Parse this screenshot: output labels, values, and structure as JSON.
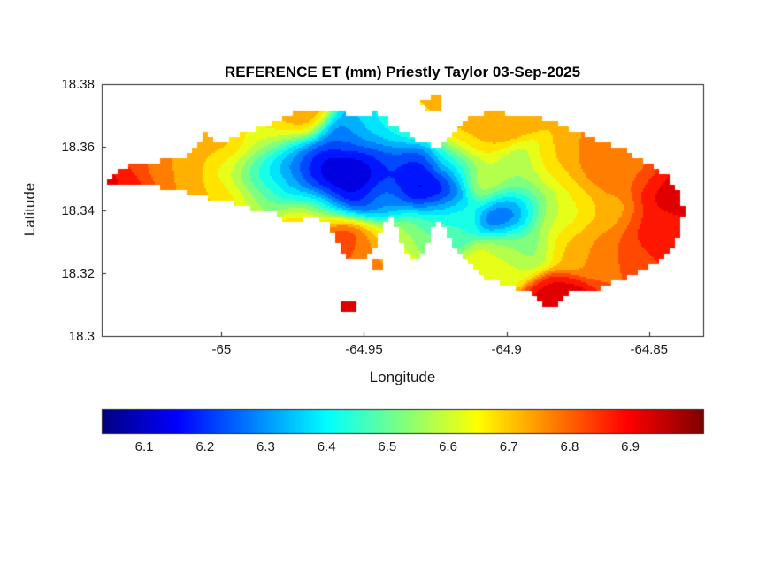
{
  "figure": {
    "background": "#ffffff"
  },
  "colors": {
    "text": "#1a1a1a",
    "axis": "#262626",
    "title": "#000000"
  },
  "chart_data": {
    "type": "heatmap",
    "style": "filled-contour-map",
    "title": "REFERENCE ET (mm) Priestly Taylor 03-Sep-2025",
    "xlabel": "Longitude",
    "ylabel": "Latitude",
    "xlim": [
      -65.042,
      -64.831
    ],
    "ylim": [
      18.3,
      18.38
    ],
    "xticks": [
      -65,
      -64.95,
      -64.9,
      -64.85
    ],
    "xtick_labels": [
      "-65",
      "-64.95",
      "-64.9",
      "-64.85"
    ],
    "yticks": [
      18.3,
      18.32,
      18.34,
      18.36,
      18.38
    ],
    "ytick_labels": [
      "18.3",
      "18.32",
      "18.34",
      "18.36",
      "18.38"
    ],
    "grid": false,
    "colormap": "jet",
    "contour_interval_mm": 0.05,
    "colorbar": {
      "orientation": "horizontal",
      "clim": [
        6.03,
        7.02
      ],
      "ticks": [
        6.1,
        6.2,
        6.3,
        6.4,
        6.5,
        6.6,
        6.7,
        6.8,
        6.9
      ],
      "tick_labels": [
        "6.1",
        "6.2",
        "6.3",
        "6.4",
        "6.5",
        "6.6",
        "6.7",
        "6.8",
        "6.9"
      ]
    },
    "island_outline": [
      [
        -65.0402,
        18.3491
      ],
      [
        -65.0346,
        18.3528
      ],
      [
        -65.0285,
        18.3553
      ],
      [
        -65.0241,
        18.3539
      ],
      [
        -65.0192,
        18.3573
      ],
      [
        -65.0139,
        18.3559
      ],
      [
        -65.0087,
        18.3595
      ],
      [
        -65.0056,
        18.3646
      ],
      [
        -65.0022,
        18.3609
      ],
      [
        -64.9963,
        18.3629
      ],
      [
        -64.9892,
        18.3651
      ],
      [
        -64.9814,
        18.3679
      ],
      [
        -64.9737,
        18.371
      ],
      [
        -64.9644,
        18.3719
      ],
      [
        -64.9552,
        18.3705
      ],
      [
        -64.9499,
        18.3693
      ],
      [
        -64.9468,
        18.3716
      ],
      [
        -64.9437,
        18.3705
      ],
      [
        -64.9406,
        18.3671
      ],
      [
        -64.9363,
        18.3648
      ],
      [
        -64.932,
        18.3623
      ],
      [
        -64.9289,
        18.3612
      ],
      [
        -64.9242,
        18.3595
      ],
      [
        -64.9211,
        18.3618
      ],
      [
        -64.918,
        18.3657
      ],
      [
        -64.9143,
        18.3688
      ],
      [
        -64.9097,
        18.3705
      ],
      [
        -64.9035,
        18.3713
      ],
      [
        -64.8973,
        18.3699
      ],
      [
        -64.8918,
        18.3707
      ],
      [
        -64.8868,
        18.3691
      ],
      [
        -64.8806,
        18.3665
      ],
      [
        -64.8744,
        18.3646
      ],
      [
        -64.8689,
        18.3626
      ],
      [
        -64.8633,
        18.3609
      ],
      [
        -64.8577,
        18.3587
      ],
      [
        -64.8525,
        18.3559
      ],
      [
        -64.8475,
        18.3531
      ],
      [
        -64.8432,
        18.3502
      ],
      [
        -64.8401,
        18.3469
      ],
      [
        -64.8382,
        18.3429
      ],
      [
        -64.8379,
        18.3387
      ],
      [
        -64.8389,
        18.3345
      ],
      [
        -64.8407,
        18.3303
      ],
      [
        -64.8438,
        18.3258
      ],
      [
        -64.8472,
        18.3233
      ],
      [
        -64.8525,
        18.3208
      ],
      [
        -64.858,
        18.3185
      ],
      [
        -64.8633,
        18.3166
      ],
      [
        -64.8686,
        18.3149
      ],
      [
        -64.8735,
        18.3138
      ],
      [
        -64.8772,
        18.314
      ],
      [
        -64.8803,
        18.3121
      ],
      [
        -64.8831,
        18.3093
      ],
      [
        -64.8865,
        18.309
      ],
      [
        -64.889,
        18.3118
      ],
      [
        -64.8921,
        18.3138
      ],
      [
        -64.8967,
        18.3152
      ],
      [
        -64.9017,
        18.3166
      ],
      [
        -64.9063,
        18.318
      ],
      [
        -64.91,
        18.3199
      ],
      [
        -64.9131,
        18.3227
      ],
      [
        -64.9156,
        18.325
      ],
      [
        -64.918,
        18.3278
      ],
      [
        -64.9202,
        18.332
      ],
      [
        -64.9221,
        18.3357
      ],
      [
        -64.9239,
        18.3368
      ],
      [
        -64.9258,
        18.3334
      ],
      [
        -64.9273,
        18.3292
      ],
      [
        -64.9295,
        18.3255
      ],
      [
        -64.9323,
        18.3239
      ],
      [
        -64.9347,
        18.3255
      ],
      [
        -64.9366,
        18.3292
      ],
      [
        -64.9381,
        18.3334
      ],
      [
        -64.9397,
        18.3368
      ],
      [
        -64.9412,
        18.3373
      ],
      [
        -64.9431,
        18.3345
      ],
      [
        -64.9449,
        18.3312
      ],
      [
        -64.9465,
        18.3278
      ],
      [
        -64.9487,
        18.3253
      ],
      [
        -64.9514,
        18.3236
      ],
      [
        -64.9545,
        18.3244
      ],
      [
        -64.9573,
        18.3264
      ],
      [
        -64.9595,
        18.3295
      ],
      [
        -64.9613,
        18.3331
      ],
      [
        -64.9632,
        18.3359
      ],
      [
        -64.9657,
        18.3376
      ],
      [
        -64.9688,
        18.3385
      ],
      [
        -64.9719,
        18.3371
      ],
      [
        -64.9746,
        18.3351
      ],
      [
        -64.9771,
        18.3362
      ],
      [
        -64.9799,
        18.3387
      ],
      [
        -64.9827,
        18.3404
      ],
      [
        -64.9858,
        18.3399
      ],
      [
        -64.9892,
        18.3399
      ],
      [
        -64.9932,
        18.3413
      ],
      [
        -64.9975,
        18.3424
      ],
      [
        -65.0022,
        18.3432
      ],
      [
        -65.0068,
        18.3444
      ],
      [
        -65.0118,
        18.3452
      ],
      [
        -65.0167,
        18.3463
      ],
      [
        -65.0217,
        18.3472
      ],
      [
        -65.0269,
        18.348
      ],
      [
        -65.0319,
        18.3486
      ],
      [
        -65.0365,
        18.3488
      ],
      [
        -65.0396,
        18.3488
      ]
    ],
    "islets": [
      [
        [
          -64.9298,
          18.3752
        ],
        [
          -64.9236,
          18.3761
        ],
        [
          -64.922,
          18.3735
        ],
        [
          -64.9251,
          18.3713
        ],
        [
          -64.9288,
          18.3719
        ]
      ],
      [
        [
          -64.9474,
          18.3247
        ],
        [
          -64.9431,
          18.3253
        ],
        [
          -64.9421,
          18.3225
        ],
        [
          -64.9449,
          18.3202
        ],
        [
          -64.9477,
          18.3219
        ]
      ],
      [
        [
          -64.9579,
          18.3101
        ],
        [
          -64.953,
          18.3107
        ],
        [
          -64.9524,
          18.3079
        ],
        [
          -64.9567,
          18.3067
        ]
      ]
    ],
    "et_samples": [
      [
        -65.038,
        18.35,
        6.92
      ],
      [
        -65.028,
        18.356,
        6.8
      ],
      [
        -65.03,
        18.344,
        6.88
      ],
      [
        -65.018,
        18.35,
        6.75
      ],
      [
        -65.008,
        18.356,
        6.72
      ],
      [
        -65.005,
        18.345,
        6.72
      ],
      [
        -64.997,
        18.352,
        6.6
      ],
      [
        -64.998,
        18.342,
        6.68
      ],
      [
        -64.995,
        18.36,
        6.75
      ],
      [
        -64.982,
        18.366,
        6.72
      ],
      [
        -64.973,
        18.37,
        6.75
      ],
      [
        -64.986,
        18.362,
        6.55
      ],
      [
        -64.987,
        18.353,
        6.38
      ],
      [
        -64.986,
        18.344,
        6.55
      ],
      [
        -64.976,
        18.357,
        6.3
      ],
      [
        -64.968,
        18.353,
        6.15
      ],
      [
        -64.96,
        18.35,
        6.05
      ],
      [
        -64.951,
        18.354,
        6.08
      ],
      [
        -64.942,
        18.356,
        6.25
      ],
      [
        -64.933,
        18.351,
        6.15
      ],
      [
        -64.925,
        18.346,
        6.08
      ],
      [
        -64.955,
        18.345,
        6.12
      ],
      [
        -64.944,
        18.343,
        6.3
      ],
      [
        -64.965,
        18.342,
        6.45
      ],
      [
        -64.977,
        18.348,
        6.35
      ],
      [
        -64.948,
        18.365,
        6.38
      ],
      [
        -64.937,
        18.367,
        6.45
      ],
      [
        -64.957,
        18.362,
        6.25
      ],
      [
        -64.971,
        18.336,
        6.72
      ],
      [
        -64.959,
        18.332,
        6.88
      ],
      [
        -64.95,
        18.328,
        6.78
      ],
      [
        -64.939,
        18.33,
        6.6
      ],
      [
        -64.975,
        18.327,
        6.68
      ],
      [
        -64.929,
        18.333,
        6.5
      ],
      [
        -64.921,
        18.339,
        6.45
      ],
      [
        -64.919,
        18.354,
        6.4
      ],
      [
        -64.912,
        18.362,
        6.7
      ],
      [
        -64.905,
        18.368,
        6.75
      ],
      [
        -64.906,
        18.35,
        6.62
      ],
      [
        -64.898,
        18.34,
        6.22
      ],
      [
        -64.896,
        18.352,
        6.55
      ],
      [
        -64.89,
        18.346,
        6.5
      ],
      [
        -64.893,
        18.329,
        6.52
      ],
      [
        -64.901,
        18.322,
        6.62
      ],
      [
        -64.884,
        18.352,
        6.72
      ],
      [
        -64.884,
        18.338,
        6.6
      ],
      [
        -64.875,
        18.344,
        6.65
      ],
      [
        -64.877,
        18.329,
        6.72
      ],
      [
        -64.867,
        18.35,
        6.8
      ],
      [
        -64.856,
        18.352,
        6.78
      ],
      [
        -64.845,
        18.346,
        6.92
      ],
      [
        -64.85,
        18.334,
        6.88
      ],
      [
        -64.862,
        18.326,
        6.8
      ],
      [
        -64.884,
        18.311,
        6.92
      ],
      [
        -64.863,
        18.339,
        6.72
      ],
      [
        -64.925,
        18.374,
        6.75
      ],
      [
        -64.945,
        18.322,
        6.78
      ],
      [
        -64.955,
        18.308,
        6.95
      ]
    ]
  }
}
